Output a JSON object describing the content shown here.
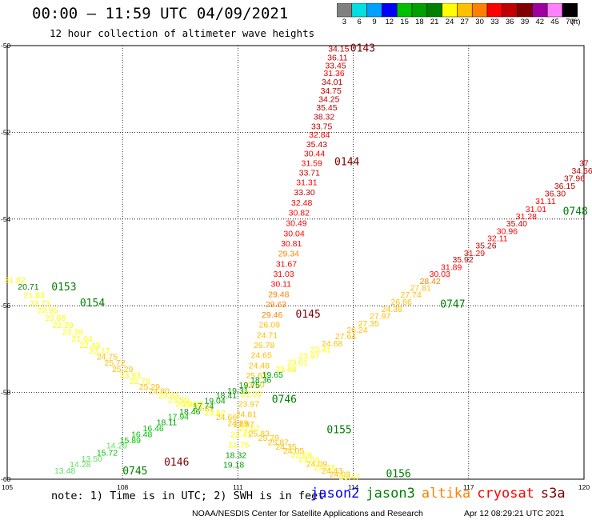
{
  "header": {
    "title": "00:00 – 11:59 UTC 04/09/2021",
    "subtitle": "12 hour collection of altimeter wave heights"
  },
  "colorbar": {
    "unit_label": "(ft)",
    "bins": [
      {
        "label": "3",
        "color": "#808080"
      },
      {
        "label": "6",
        "color": "#00e0e0"
      },
      {
        "label": "9",
        "color": "#00a0ff"
      },
      {
        "label": "12",
        "color": "#0000ff"
      },
      {
        "label": "15",
        "color": "#00c000"
      },
      {
        "label": "18",
        "color": "#00a000"
      },
      {
        "label": "21",
        "color": "#008000"
      },
      {
        "label": "24",
        "color": "#ffff00"
      },
      {
        "label": "27",
        "color": "#ffc000"
      },
      {
        "label": "30",
        "color": "#ff8000"
      },
      {
        "label": "33",
        "color": "#ff0000"
      },
      {
        "label": "36",
        "color": "#c00000"
      },
      {
        "label": "39",
        "color": "#800000"
      },
      {
        "label": "42",
        "color": "#a000a0"
      },
      {
        "label": "45",
        "color": "#ff80ff"
      },
      {
        "label": "70",
        "color": "#000000"
      }
    ]
  },
  "footer": {
    "note": "note:  1) Time is in UTC; 2) SWH is in feet",
    "legend": [
      {
        "name": "jason2",
        "color": "#0000ff"
      },
      {
        "name": "jason3",
        "color": "#008000"
      },
      {
        "name": "altika",
        "color": "#ff8000"
      },
      {
        "name": "cryosat",
        "color": "#ff0000"
      },
      {
        "name": "s3a",
        "color": "#800000"
      }
    ],
    "credit": "NOAA/NESDIS Center for Satellite Applications and Research",
    "generated": "Apr 12 08:29:21 UTC 2021"
  },
  "chart_data": {
    "type": "scatter",
    "title": "00:00 – 11:59 UTC 04/09/2021",
    "xlim": [
      105,
      120
    ],
    "ylim": [
      -60,
      -50
    ],
    "x_ticks": [
      "105",
      "108",
      "111",
      "114",
      "117",
      "120"
    ],
    "y_ticks": [
      "-50",
      "-52",
      "-54",
      "-56",
      "-58",
      "-60"
    ],
    "grid": true,
    "legend_position": "bottom",
    "pass_labels": [
      {
        "text": "0143",
        "x": 113.92,
        "y": -50.05,
        "color": "#800000"
      },
      {
        "text": "0144",
        "x": 113.51,
        "y": -52.67,
        "color": "#800000"
      },
      {
        "text": "0145",
        "x": 112.5,
        "y": -56.18,
        "color": "#800000"
      },
      {
        "text": "0146",
        "x": 109.08,
        "y": -59.59,
        "color": "#800000"
      },
      {
        "text": "0153",
        "x": 106.15,
        "y": -55.55,
        "color": "#008000"
      },
      {
        "text": "0154",
        "x": 106.89,
        "y": -55.92,
        "color": "#008000"
      },
      {
        "text": "0155",
        "x": 113.31,
        "y": -58.85,
        "color": "#008000"
      },
      {
        "text": "0156",
        "x": 114.85,
        "y": -59.86,
        "color": "#008000"
      },
      {
        "text": "0745",
        "x": 108.0,
        "y": -59.8,
        "color": "#008000"
      },
      {
        "text": "0746",
        "x": 111.88,
        "y": -58.15,
        "color": "#008000"
      },
      {
        "text": "0747",
        "x": 116.26,
        "y": -55.95,
        "color": "#008000"
      },
      {
        "text": "0748",
        "x": 119.45,
        "y": -53.81,
        "color": "#008000"
      }
    ],
    "points": [
      {
        "x": 113.62,
        "y": -50.06,
        "v": "34.15",
        "c": "#c00000"
      },
      {
        "x": 113.59,
        "y": -50.27,
        "v": "36.11",
        "c": "#c00000"
      },
      {
        "x": 113.54,
        "y": -50.45,
        "v": "33.45",
        "c": "#c00000"
      },
      {
        "x": 113.5,
        "y": -50.63,
        "v": "31.36",
        "c": "#ff0000"
      },
      {
        "x": 113.45,
        "y": -50.83,
        "v": "34.01",
        "c": "#c00000"
      },
      {
        "x": 113.42,
        "y": -51.03,
        "v": "34.75",
        "c": "#c00000"
      },
      {
        "x": 113.37,
        "y": -51.23,
        "v": "34.25",
        "c": "#c00000"
      },
      {
        "x": 113.31,
        "y": -51.42,
        "v": "35.45",
        "c": "#c00000"
      },
      {
        "x": 113.24,
        "y": -51.63,
        "v": "38.32",
        "c": "#c00000"
      },
      {
        "x": 113.18,
        "y": -51.85,
        "v": "33.75",
        "c": "#c00000"
      },
      {
        "x": 113.12,
        "y": -52.05,
        "v": "32.84",
        "c": "#ff0000"
      },
      {
        "x": 113.05,
        "y": -52.27,
        "v": "35.43",
        "c": "#c00000"
      },
      {
        "x": 112.99,
        "y": -52.48,
        "v": "30.44",
        "c": "#ff0000"
      },
      {
        "x": 112.92,
        "y": -52.7,
        "v": "31.59",
        "c": "#ff0000"
      },
      {
        "x": 112.86,
        "y": -52.92,
        "v": "33.71",
        "c": "#c00000"
      },
      {
        "x": 112.79,
        "y": -53.15,
        "v": "31.31",
        "c": "#ff0000"
      },
      {
        "x": 112.73,
        "y": -53.38,
        "v": "33.30",
        "c": "#c00000"
      },
      {
        "x": 112.66,
        "y": -53.62,
        "v": "32.48",
        "c": "#ff0000"
      },
      {
        "x": 112.59,
        "y": -53.85,
        "v": "30.82",
        "c": "#ff0000"
      },
      {
        "x": 112.52,
        "y": -54.09,
        "v": "30.49",
        "c": "#ff0000"
      },
      {
        "x": 112.46,
        "y": -54.33,
        "v": "30.04",
        "c": "#ff0000"
      },
      {
        "x": 112.39,
        "y": -54.56,
        "v": "30.81",
        "c": "#ff0000"
      },
      {
        "x": 112.32,
        "y": -54.79,
        "v": "29.34",
        "c": "#ff8000"
      },
      {
        "x": 112.26,
        "y": -55.03,
        "v": "31.67",
        "c": "#ff0000"
      },
      {
        "x": 112.19,
        "y": -55.26,
        "v": "31.03",
        "c": "#ff0000"
      },
      {
        "x": 112.12,
        "y": -55.49,
        "v": "30.11",
        "c": "#ff0000"
      },
      {
        "x": 112.06,
        "y": -55.73,
        "v": "29.48",
        "c": "#ff8000"
      },
      {
        "x": 111.99,
        "y": -55.96,
        "v": "29.63",
        "c": "#ff8000"
      },
      {
        "x": 111.89,
        "y": -56.2,
        "v": "29.46",
        "c": "#ff8000"
      },
      {
        "x": 111.82,
        "y": -56.43,
        "v": "26.09",
        "c": "#ffc000"
      },
      {
        "x": 111.76,
        "y": -56.67,
        "v": "24.71",
        "c": "#ffc000"
      },
      {
        "x": 111.68,
        "y": -56.9,
        "v": "26.78",
        "c": "#ffc000"
      },
      {
        "x": 111.61,
        "y": -57.13,
        "v": "24.65",
        "c": "#ffc000"
      },
      {
        "x": 111.55,
        "y": -57.37,
        "v": "24.48",
        "c": "#ffc000"
      },
      {
        "x": 111.48,
        "y": -57.6,
        "v": "25.63",
        "c": "#ffc000"
      },
      {
        "x": 111.42,
        "y": -57.81,
        "v": "23.60",
        "c": "#ffc000"
      },
      {
        "x": 111.34,
        "y": -58.03,
        "v": "23.00",
        "c": "#ffff00"
      },
      {
        "x": 111.28,
        "y": -58.26,
        "v": "23.97",
        "c": "#ffc000"
      },
      {
        "x": 111.22,
        "y": -58.5,
        "v": "24.81",
        "c": "#ffc000"
      },
      {
        "x": 111.15,
        "y": -58.73,
        "v": "23.97",
        "c": "#ffc000"
      },
      {
        "x": 111.08,
        "y": -58.96,
        "v": "23.41",
        "c": "#ffff00"
      },
      {
        "x": 111.02,
        "y": -59.2,
        "v": "21.75",
        "c": "#ffff00"
      },
      {
        "x": 110.95,
        "y": -59.44,
        "v": "18.32",
        "c": "#00a000"
      },
      {
        "x": 110.89,
        "y": -59.66,
        "v": "19.18",
        "c": "#00a000"
      },
      {
        "x": 105.2,
        "y": -55.4,
        "v": "31.82",
        "c": "#ffff00"
      },
      {
        "x": 105.55,
        "y": -55.55,
        "v": "20.71",
        "c": "#008000"
      },
      {
        "x": 105.7,
        "y": -55.75,
        "v": "21.83",
        "c": "#ffff00"
      },
      {
        "x": 105.85,
        "y": -55.94,
        "v": "23.73",
        "c": "#ffff00"
      },
      {
        "x": 106.05,
        "y": -56.1,
        "v": "22.95",
        "c": "#ffff00"
      },
      {
        "x": 106.25,
        "y": -56.27,
        "v": "23.88",
        "c": "#ffff00"
      },
      {
        "x": 106.45,
        "y": -56.44,
        "v": "22.29",
        "c": "#ffff00"
      },
      {
        "x": 106.7,
        "y": -56.6,
        "v": "23.39",
        "c": "#ffff00"
      },
      {
        "x": 106.95,
        "y": -56.75,
        "v": "21.04",
        "c": "#ffff00"
      },
      {
        "x": 107.15,
        "y": -56.9,
        "v": "22.43",
        "c": "#ffff00"
      },
      {
        "x": 107.4,
        "y": -57.03,
        "v": "23.17",
        "c": "#ffff00"
      },
      {
        "x": 107.6,
        "y": -57.17,
        "v": "24.75",
        "c": "#ffc000"
      },
      {
        "x": 107.8,
        "y": -57.31,
        "v": "25.72",
        "c": "#ffc000"
      },
      {
        "x": 108.0,
        "y": -57.45,
        "v": "25.29",
        "c": "#ffc000"
      },
      {
        "x": 108.2,
        "y": -57.59,
        "v": "23.93",
        "c": "#ffff00"
      },
      {
        "x": 108.45,
        "y": -57.73,
        "v": "22.70",
        "c": "#ffff00"
      },
      {
        "x": 108.7,
        "y": -57.86,
        "v": "25.29",
        "c": "#ffc000"
      },
      {
        "x": 108.95,
        "y": -57.96,
        "v": "24.80",
        "c": "#ffc000"
      },
      {
        "x": 109.2,
        "y": -58.06,
        "v": "23.93",
        "c": "#ffff00"
      },
      {
        "x": 109.45,
        "y": -58.16,
        "v": "23.50",
        "c": "#ffff00"
      },
      {
        "x": 109.65,
        "y": -58.26,
        "v": "20.94",
        "c": "#ffff00"
      },
      {
        "x": 109.85,
        "y": -58.26,
        "v": "23.45",
        "c": "#ffff00"
      },
      {
        "x": 110.1,
        "y": -58.36,
        "v": "24.81",
        "c": "#ffc000"
      },
      {
        "x": 110.4,
        "y": -58.46,
        "v": "23.62",
        "c": "#ffff00"
      },
      {
        "x": 110.7,
        "y": -58.56,
        "v": "24.66",
        "c": "#ffc000"
      },
      {
        "x": 111.0,
        "y": -58.7,
        "v": "24.89",
        "c": "#ffc000"
      },
      {
        "x": 111.3,
        "y": -58.82,
        "v": "22.67",
        "c": "#ffff00"
      },
      {
        "x": 111.55,
        "y": -58.94,
        "v": "25.83",
        "c": "#ffc000"
      },
      {
        "x": 111.8,
        "y": -59.04,
        "v": "25.79",
        "c": "#ffc000"
      },
      {
        "x": 112.05,
        "y": -59.14,
        "v": "25.87",
        "c": "#ffc000"
      },
      {
        "x": 112.25,
        "y": -59.24,
        "v": "24.35",
        "c": "#ffc000"
      },
      {
        "x": 112.45,
        "y": -59.34,
        "v": "24.05",
        "c": "#ffc000"
      },
      {
        "x": 112.65,
        "y": -59.44,
        "v": "22.69",
        "c": "#ffff00"
      },
      {
        "x": 112.85,
        "y": -59.54,
        "v": "23.04",
        "c": "#ffff00"
      },
      {
        "x": 113.05,
        "y": -59.64,
        "v": "24.09",
        "c": "#ffc000"
      },
      {
        "x": 113.25,
        "y": -59.72,
        "v": "22.43",
        "c": "#ffff00"
      },
      {
        "x": 113.45,
        "y": -59.8,
        "v": "24.43",
        "c": "#ffc000"
      },
      {
        "x": 113.65,
        "y": -59.88,
        "v": "24.03",
        "c": "#ffc000"
      },
      {
        "x": 113.9,
        "y": -59.94,
        "v": "23.47",
        "c": "#ffff00"
      },
      {
        "x": 106.5,
        "y": -59.8,
        "v": "13.48",
        "c": "#60e060"
      },
      {
        "x": 106.9,
        "y": -59.65,
        "v": "14.28",
        "c": "#60e060"
      },
      {
        "x": 107.2,
        "y": -59.52,
        "v": "13.50",
        "c": "#60e060"
      },
      {
        "x": 107.6,
        "y": -59.38,
        "v": "15.72",
        "c": "#00c000"
      },
      {
        "x": 107.85,
        "y": -59.22,
        "v": "14.29",
        "c": "#60e060"
      },
      {
        "x": 108.2,
        "y": -59.1,
        "v": "15.89",
        "c": "#00c000"
      },
      {
        "x": 108.5,
        "y": -58.96,
        "v": "16.48",
        "c": "#00c000"
      },
      {
        "x": 108.8,
        "y": -58.82,
        "v": "16.46",
        "c": "#00c000"
      },
      {
        "x": 109.15,
        "y": -58.68,
        "v": "18.11",
        "c": "#00a000"
      },
      {
        "x": 109.45,
        "y": -58.55,
        "v": "17.94",
        "c": "#00c000"
      },
      {
        "x": 109.75,
        "y": -58.43,
        "v": "18.46",
        "c": "#00a000"
      },
      {
        "x": 110.1,
        "y": -58.3,
        "v": "17.74",
        "c": "#00c000"
      },
      {
        "x": 110.4,
        "y": -58.18,
        "v": "19.04",
        "c": "#00a000"
      },
      {
        "x": 110.7,
        "y": -58.06,
        "v": "18.41",
        "c": "#00a000"
      },
      {
        "x": 111.0,
        "y": -57.95,
        "v": "19.31",
        "c": "#00a000"
      },
      {
        "x": 111.3,
        "y": -57.82,
        "v": "19.75",
        "c": "#00a000"
      },
      {
        "x": 111.6,
        "y": -57.7,
        "v": "18.36",
        "c": "#00a000"
      },
      {
        "x": 111.9,
        "y": -57.58,
        "v": "19.65",
        "c": "#00a000"
      },
      {
        "x": 112.25,
        "y": -57.45,
        "v": "23.88",
        "c": "#ffff00"
      },
      {
        "x": 112.55,
        "y": -57.3,
        "v": "23.61",
        "c": "#ffff00"
      },
      {
        "x": 112.85,
        "y": -57.15,
        "v": "23.97",
        "c": "#ffff00"
      },
      {
        "x": 113.15,
        "y": -57.0,
        "v": "23.41",
        "c": "#ffff00"
      },
      {
        "x": 113.45,
        "y": -56.86,
        "v": "24.68",
        "c": "#ffc000"
      },
      {
        "x": 113.8,
        "y": -56.7,
        "v": "27.64",
        "c": "#ffc000"
      },
      {
        "x": 114.1,
        "y": -56.55,
        "v": "26.24",
        "c": "#ffc000"
      },
      {
        "x": 114.4,
        "y": -56.4,
        "v": "27.35",
        "c": "#ffc000"
      },
      {
        "x": 114.7,
        "y": -56.23,
        "v": "27.97",
        "c": "#ffc000"
      },
      {
        "x": 115.0,
        "y": -56.07,
        "v": "24.38",
        "c": "#ffc000"
      },
      {
        "x": 115.25,
        "y": -55.9,
        "v": "26.86",
        "c": "#ffc000"
      },
      {
        "x": 115.5,
        "y": -55.74,
        "v": "27.74",
        "c": "#ffc000"
      },
      {
        "x": 115.75,
        "y": -55.58,
        "v": "27.81",
        "c": "#ffc000"
      },
      {
        "x": 116.0,
        "y": -55.42,
        "v": "28.42",
        "c": "#ff8000"
      },
      {
        "x": 116.25,
        "y": -55.26,
        "v": "30.03",
        "c": "#ff0000"
      },
      {
        "x": 116.55,
        "y": -55.1,
        "v": "31.89",
        "c": "#ff0000"
      },
      {
        "x": 116.85,
        "y": -54.93,
        "v": "35.92",
        "c": "#c00000"
      },
      {
        "x": 117.15,
        "y": -54.78,
        "v": "31.29",
        "c": "#ff0000"
      },
      {
        "x": 117.45,
        "y": -54.6,
        "v": "35.26",
        "c": "#c00000"
      },
      {
        "x": 117.75,
        "y": -54.44,
        "v": "32.11",
        "c": "#ff0000"
      },
      {
        "x": 118.0,
        "y": -54.27,
        "v": "30.96",
        "c": "#ff0000"
      },
      {
        "x": 118.25,
        "y": -54.1,
        "v": "35.40",
        "c": "#c00000"
      },
      {
        "x": 118.5,
        "y": -53.93,
        "v": "31.28",
        "c": "#ff0000"
      },
      {
        "x": 118.75,
        "y": -53.76,
        "v": "31.01",
        "c": "#ff0000"
      },
      {
        "x": 119.0,
        "y": -53.58,
        "v": "31.11",
        "c": "#ff0000"
      },
      {
        "x": 119.25,
        "y": -53.4,
        "v": "36.30",
        "c": "#c00000"
      },
      {
        "x": 119.5,
        "y": -53.23,
        "v": "36.15",
        "c": "#c00000"
      },
      {
        "x": 119.75,
        "y": -53.05,
        "v": "37.96",
        "c": "#c00000"
      },
      {
        "x": 119.95,
        "y": -52.88,
        "v": "34.66",
        "c": "#c00000"
      },
      {
        "x": 120.0,
        "y": -52.7,
        "v": "37",
        "c": "#c00000"
      }
    ]
  }
}
